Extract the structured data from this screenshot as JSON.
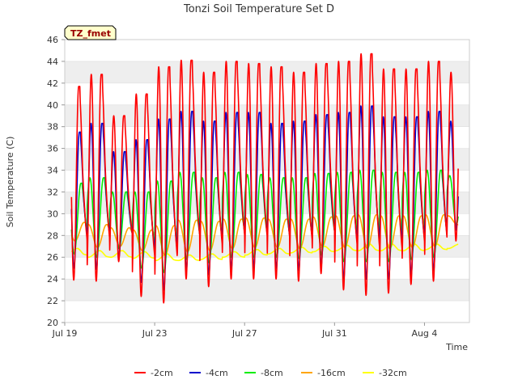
{
  "chart_data": {
    "type": "line",
    "title": "Tonzi Soil Temperature Set D",
    "xlabel": "Time",
    "ylabel": "Soil Temperature (C)",
    "badge": "TZ_fmet",
    "ylim": [
      20,
      46
    ],
    "yticks": [
      20,
      22,
      24,
      26,
      28,
      30,
      32,
      34,
      36,
      38,
      40,
      42,
      44,
      46
    ],
    "xlim_days": [
      0,
      18
    ],
    "xticks": [
      {
        "day": 0,
        "label": "Jul 19"
      },
      {
        "day": 4,
        "label": "Jul 23"
      },
      {
        "day": 8,
        "label": "Jul 27"
      },
      {
        "day": 12,
        "label": "Jul 31"
      },
      {
        "day": 16,
        "label": "Aug 4"
      }
    ],
    "data_range_days": [
      0.3,
      17.5
    ],
    "grid": "horizontal bands",
    "legend_position": "bottom",
    "series": [
      {
        "name": "-2cm",
        "color": "#ff0000",
        "daily_max": [
          41.7,
          42.8,
          39.0,
          41.0,
          43.5,
          44.1,
          43.0,
          44.0,
          43.8,
          43.5,
          43.0,
          43.8,
          44.0,
          44.7,
          43.3,
          43.3,
          44.0,
          43.0
        ],
        "daily_min": [
          23.9,
          23.8,
          25.6,
          22.4,
          21.8,
          24.0,
          23.3,
          24.0,
          24.0,
          24.0,
          23.8,
          24.5,
          23.0,
          22.5,
          22.7,
          23.5,
          23.8,
          27.5
        ]
      },
      {
        "name": "-4cm",
        "color": "#0000cc",
        "daily_max": [
          37.5,
          38.3,
          35.7,
          36.8,
          38.7,
          39.4,
          38.5,
          39.3,
          39.3,
          38.3,
          38.5,
          39.1,
          39.3,
          39.9,
          38.9,
          38.9,
          39.4,
          38.5
        ],
        "daily_min": [
          25.0,
          24.9,
          26.0,
          23.7,
          23.0,
          24.9,
          24.4,
          25.0,
          25.0,
          25.0,
          24.8,
          25.3,
          24.0,
          24.0,
          24.0,
          24.4,
          24.8,
          28.5
        ]
      },
      {
        "name": "-8cm",
        "color": "#00ee00",
        "daily_max": [
          32.8,
          33.3,
          32.0,
          32.0,
          33.0,
          33.8,
          33.3,
          33.8,
          33.6,
          33.3,
          33.3,
          33.7,
          33.8,
          34.0,
          33.8,
          33.8,
          34.0,
          33.5
        ],
        "daily_min": [
          26.3,
          26.0,
          26.8,
          25.0,
          24.6,
          25.8,
          25.5,
          26.0,
          26.0,
          26.0,
          25.9,
          26.2,
          25.6,
          25.6,
          25.6,
          25.8,
          26.0,
          29.0
        ]
      },
      {
        "name": "-16cm",
        "color": "#ffa500",
        "daily_max": [
          29.2,
          29.0,
          28.7,
          28.5,
          28.9,
          29.4,
          29.3,
          29.5,
          29.6,
          29.5,
          29.5,
          29.7,
          29.8,
          29.9,
          29.8,
          29.8,
          29.9,
          29.8
        ],
        "daily_min": [
          27.5,
          26.9,
          27.0,
          26.6,
          26.2,
          26.5,
          26.6,
          26.8,
          26.9,
          26.9,
          26.8,
          27.0,
          26.9,
          26.8,
          26.8,
          26.9,
          27.0,
          29.0
        ]
      },
      {
        "name": "-32cm",
        "color": "#ffff00",
        "daily_max": [
          26.8,
          26.6,
          26.6,
          26.5,
          26.3,
          26.2,
          26.3,
          26.5,
          26.7,
          26.8,
          26.9,
          27.0,
          27.1,
          27.2,
          27.2,
          27.2,
          27.2,
          27.2
        ],
        "daily_min": [
          26.2,
          26.0,
          26.0,
          25.9,
          25.7,
          25.7,
          25.8,
          26.0,
          26.2,
          26.3,
          26.4,
          26.5,
          26.6,
          26.6,
          26.6,
          26.6,
          26.7,
          26.8
        ]
      }
    ]
  }
}
